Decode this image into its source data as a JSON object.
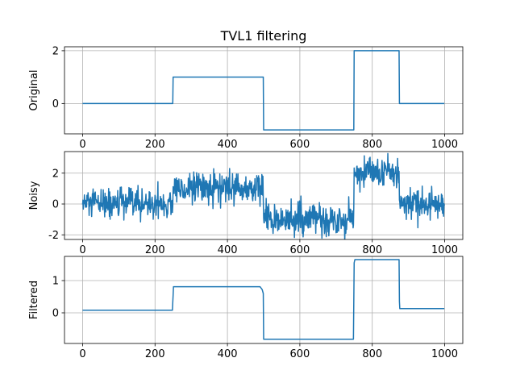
{
  "figure": {
    "title": "TVL1 filtering"
  },
  "chart_data": [
    {
      "type": "line",
      "ylabel": "Original",
      "xlim": [
        -50,
        1050
      ],
      "ylim": [
        -1.15,
        2.15
      ],
      "xticks": [
        0,
        200,
        400,
        600,
        800,
        1000
      ],
      "yticks": [
        0,
        2
      ],
      "grid": true,
      "color": "#1f77b4",
      "series": [
        {
          "x": [
            0,
            249,
            250,
            499,
            500,
            749,
            750,
            874,
            875,
            999
          ],
          "y": [
            0,
            0,
            1,
            1,
            -1,
            -1,
            2,
            2,
            0,
            0
          ]
        }
      ]
    },
    {
      "type": "line",
      "ylabel": "Noisy",
      "xlim": [
        -50,
        1050
      ],
      "ylim": [
        -2.3,
        3.4
      ],
      "xticks": [
        0,
        200,
        400,
        600,
        800,
        1000
      ],
      "yticks": [
        -2,
        0,
        2
      ],
      "grid": true,
      "color": "#1f77b4",
      "noise_sigma": 0.5,
      "segments": [
        {
          "x_start": 0,
          "x_end": 249,
          "level": 0
        },
        {
          "x_start": 250,
          "x_end": 499,
          "level": 1
        },
        {
          "x_start": 500,
          "x_end": 749,
          "level": -1
        },
        {
          "x_start": 750,
          "x_end": 874,
          "level": 2
        },
        {
          "x_start": 875,
          "x_end": 999,
          "level": 0
        }
      ]
    },
    {
      "type": "line",
      "ylabel": "Filtered",
      "xlim": [
        -50,
        1050
      ],
      "ylim": [
        -0.95,
        1.75
      ],
      "xticks": [
        0,
        200,
        400,
        600,
        800,
        1000
      ],
      "yticks": [
        0,
        1
      ],
      "grid": true,
      "color": "#1f77b4",
      "series": [
        {
          "x": [
            0,
            248,
            250,
            251,
            490,
            496,
            499,
            500,
            748,
            750,
            752,
            874,
            875,
            876,
            999
          ],
          "y": [
            0.08,
            0.08,
            0.55,
            0.81,
            0.81,
            0.72,
            0.6,
            -0.82,
            -0.82,
            1.55,
            1.65,
            1.65,
            0.35,
            0.13,
            0.13
          ]
        }
      ]
    }
  ]
}
